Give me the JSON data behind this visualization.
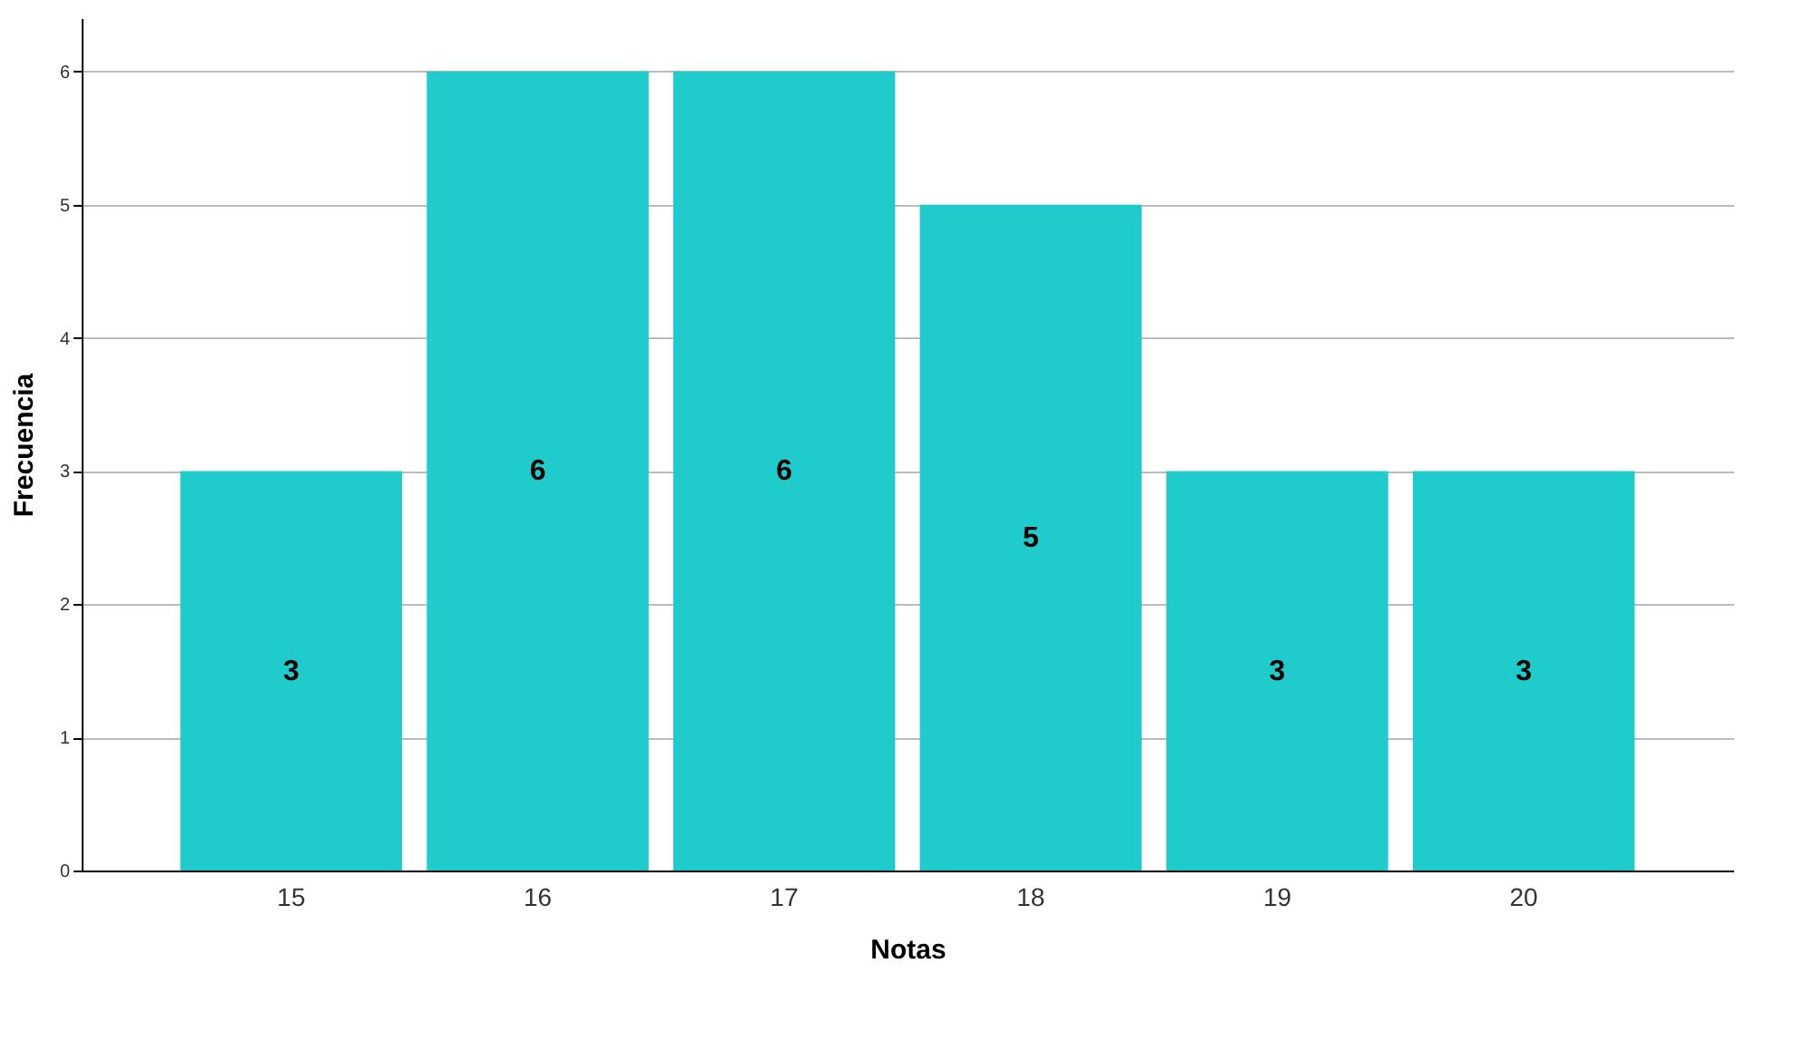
{
  "chart_data": {
    "type": "bar",
    "xlabel": "Notas",
    "ylabel": "Frecuencia",
    "categories": [
      "15",
      "16",
      "17",
      "18",
      "19",
      "20"
    ],
    "values": [
      3,
      6,
      6,
      5,
      3,
      3
    ],
    "color": "#1fcbcb",
    "ylim": [
      0,
      6.4
    ],
    "yticks": [
      0,
      1,
      2,
      3,
      4,
      5,
      6
    ],
    "grid": "y",
    "data_labels": true
  }
}
